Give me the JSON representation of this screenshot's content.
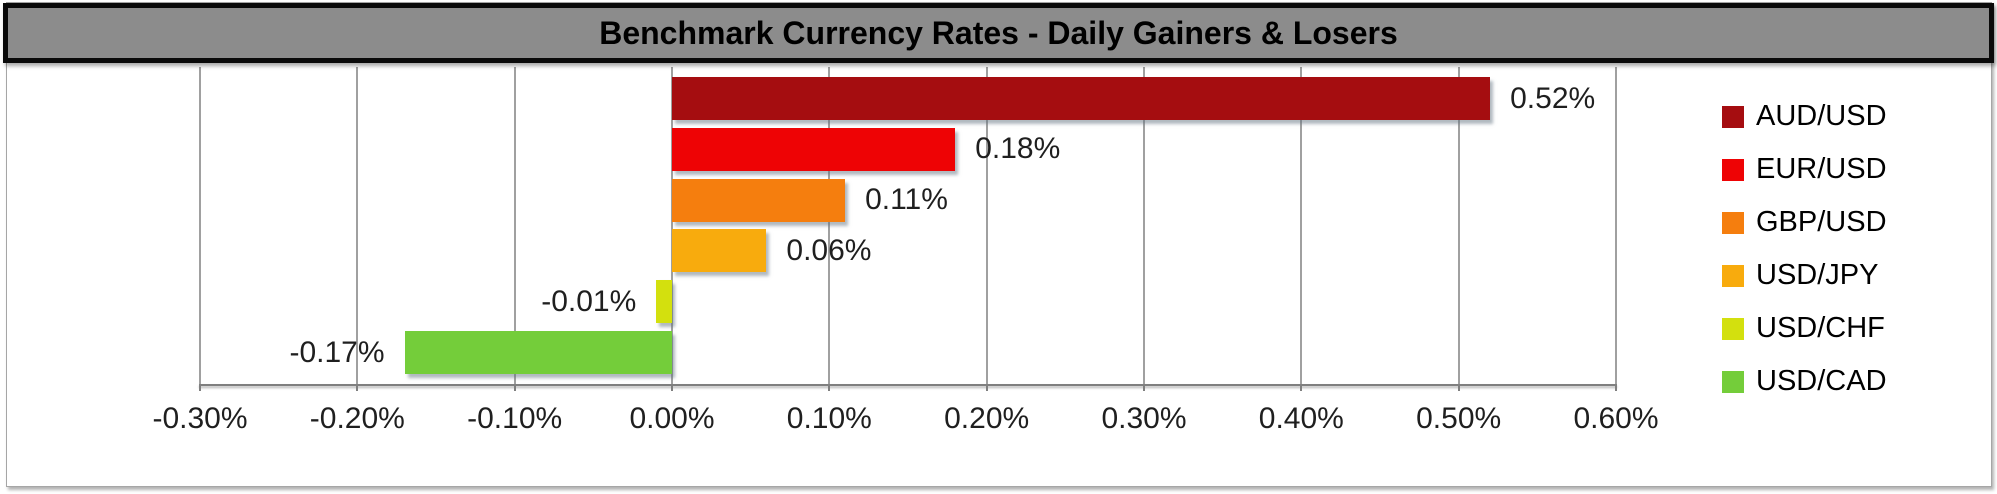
{
  "title": "Benchmark Currency Rates - Daily Gainers & Losers",
  "chart_data": {
    "type": "bar",
    "orientation": "horizontal",
    "title": "Benchmark Currency Rates - Daily Gainers & Losers",
    "categories": [
      "AUD/USD",
      "EUR/USD",
      "GBP/USD",
      "USD/JPY",
      "USD/CHF",
      "USD/CAD"
    ],
    "values": [
      0.52,
      0.18,
      0.11,
      0.06,
      -0.01,
      -0.17
    ],
    "value_labels": [
      "0.52%",
      "0.18%",
      "0.11%",
      "0.06%",
      "-0.01%",
      "-0.17%"
    ],
    "bar_colors": [
      "#a50d10",
      "#ee0305",
      "#f57e0e",
      "#f8ab0d",
      "#d3e00e",
      "#74cd3a"
    ],
    "xlabel": "",
    "ylabel": "",
    "xlim": [
      -0.3,
      0.6
    ],
    "x_tick_values": [
      -0.3,
      -0.2,
      -0.1,
      0.0,
      0.1,
      0.2,
      0.3,
      0.4,
      0.5,
      0.6
    ],
    "x_tick_labels": [
      "-0.30%",
      "-0.20%",
      "-0.10%",
      "0.00%",
      "0.10%",
      "0.20%",
      "0.30%",
      "0.40%",
      "0.50%",
      "0.60%"
    ],
    "grid": "vertical",
    "legend_position": "right",
    "legend_entries": [
      {
        "label": "AUD/USD",
        "color": "#a50d10"
      },
      {
        "label": "EUR/USD",
        "color": "#ee0305"
      },
      {
        "label": "GBP/USD",
        "color": "#f57e0e"
      },
      {
        "label": "USD/JPY",
        "color": "#f8ab0d"
      },
      {
        "label": "USD/CHF",
        "color": "#d3e00e"
      },
      {
        "label": "USD/CAD",
        "color": "#74cd3a"
      }
    ]
  },
  "style": {
    "title_bar_bg": "#8c8c8c",
    "title_text_color": "#000000",
    "gridline_color": "#a0a0a0",
    "axis_line_color": "#7f7f7f",
    "label_color": "#1f1f1f",
    "panel_bg": "#ffffff"
  }
}
